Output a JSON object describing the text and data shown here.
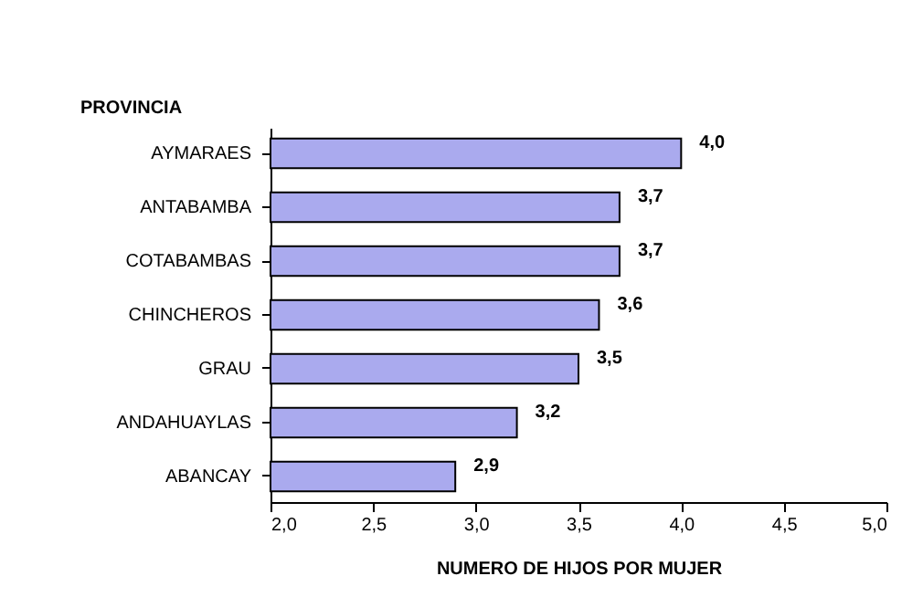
{
  "chart_data": {
    "type": "bar",
    "orientation": "horizontal",
    "annotations": [
      "PROVINCIA"
    ],
    "xlabel": "NUMERO DE HIJOS POR MUJER",
    "categories": [
      "AYMARAES",
      "ANTABAMBA",
      "COTABAMBAS",
      "CHINCHEROS",
      "GRAU",
      "ANDAHUAYLAS",
      "ABANCAY"
    ],
    "values": [
      4.0,
      3.7,
      3.7,
      3.6,
      3.5,
      3.2,
      2.9
    ],
    "value_labels": [
      "4,0",
      "3,7",
      "3,7",
      "3,6",
      "3,5",
      "3,2",
      "2,9"
    ],
    "color": "#aaaaee",
    "xlim": [
      2,
      5
    ],
    "xticks": [
      {
        "value": 2,
        "label": "2,0"
      },
      {
        "value": 2.5,
        "label": "2,5"
      },
      {
        "value": 3,
        "label": "3,0"
      },
      {
        "value": 3.5,
        "label": "3,5"
      },
      {
        "value": 4,
        "label": "4,0"
      },
      {
        "value": 4.5,
        "label": "4,5"
      },
      {
        "value": 5,
        "label": "5,0"
      }
    ],
    "grid": false
  }
}
